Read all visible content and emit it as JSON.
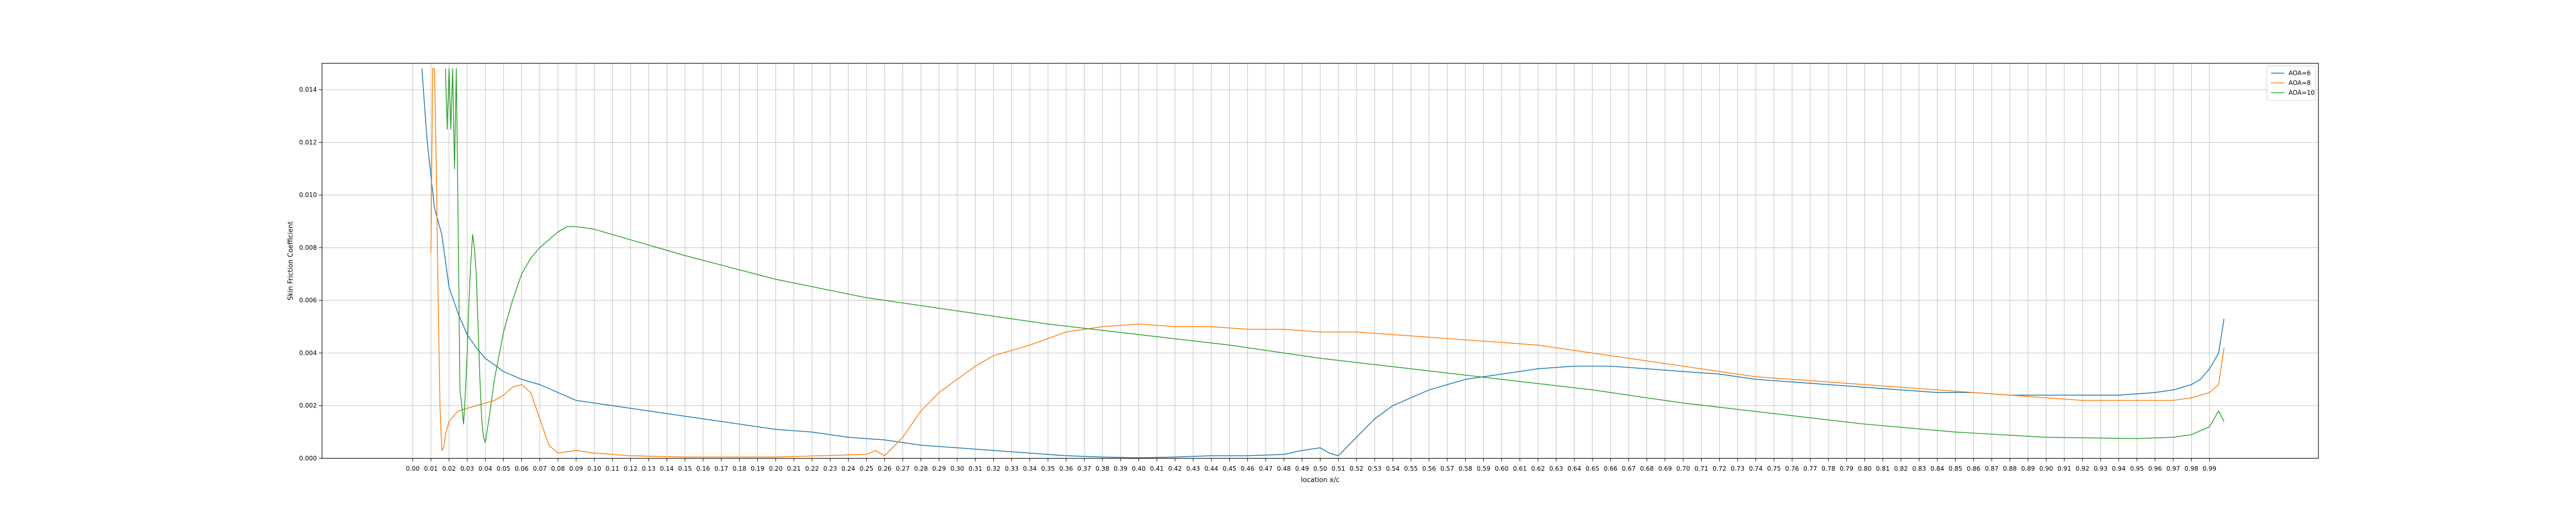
{
  "chart_data": {
    "type": "line",
    "title": "",
    "xlabel": "location x/c",
    "ylabel": "Skin Friction Coefficient",
    "xlim": [
      -0.05,
      1.05
    ],
    "ylim": [
      0,
      0.015
    ],
    "grid": true,
    "legend_position": "top-right",
    "xticks": [
      "0.00",
      "0.01",
      "0.02",
      "0.03",
      "0.04",
      "0.05",
      "0.06",
      "0.07",
      "0.08",
      "0.09",
      "0.10",
      "0.11",
      "0.12",
      "0.13",
      "0.14",
      "0.15",
      "0.16",
      "0.17",
      "0.18",
      "0.19",
      "0.20",
      "0.21",
      "0.22",
      "0.23",
      "0.24",
      "0.25",
      "0.26",
      "0.27",
      "0.28",
      "0.29",
      "0.30",
      "0.31",
      "0.32",
      "0.33",
      "0.34",
      "0.35",
      "0.36",
      "0.37",
      "0.38",
      "0.39",
      "0.40",
      "0.41",
      "0.42",
      "0.43",
      "0.44",
      "0.45",
      "0.46",
      "0.47",
      "0.48",
      "0.49",
      "0.50",
      "0.51",
      "0.52",
      "0.53",
      "0.54",
      "0.55",
      "0.56",
      "0.57",
      "0.58",
      "0.59",
      "0.60",
      "0.61",
      "0.62",
      "0.63",
      "0.64",
      "0.65",
      "0.66",
      "0.67",
      "0.68",
      "0.69",
      "0.70",
      "0.71",
      "0.72",
      "0.73",
      "0.74",
      "0.75",
      "0.76",
      "0.77",
      "0.78",
      "0.79",
      "0.80",
      "0.81",
      "0.82",
      "0.83",
      "0.84",
      "0.85",
      "0.86",
      "0.87",
      "0.88",
      "0.89",
      "0.90",
      "0.91",
      "0.92",
      "0.93",
      "0.94",
      "0.95",
      "0.96",
      "0.97",
      "0.98",
      "0.99"
    ],
    "yticks": [
      "0.000",
      "0.002",
      "0.004",
      "0.006",
      "0.008",
      "0.010",
      "0.012",
      "0.014"
    ],
    "series": [
      {
        "name": "AOA=6",
        "color": "#1f77b4",
        "x": [
          0.005,
          0.008,
          0.012,
          0.016,
          0.02,
          0.025,
          0.03,
          0.035,
          0.04,
          0.05,
          0.06,
          0.07,
          0.08,
          0.09,
          0.1,
          0.12,
          0.14,
          0.16,
          0.18,
          0.2,
          0.22,
          0.24,
          0.26,
          0.28,
          0.3,
          0.32,
          0.34,
          0.36,
          0.38,
          0.4,
          0.42,
          0.44,
          0.46,
          0.48,
          0.49,
          0.5,
          0.505,
          0.51,
          0.52,
          0.53,
          0.54,
          0.55,
          0.56,
          0.58,
          0.6,
          0.62,
          0.64,
          0.66,
          0.68,
          0.7,
          0.72,
          0.74,
          0.76,
          0.78,
          0.8,
          0.82,
          0.84,
          0.86,
          0.88,
          0.9,
          0.92,
          0.94,
          0.96,
          0.97,
          0.98,
          0.985,
          0.99,
          0.995,
          0.998
        ],
        "y": [
          0.0148,
          0.012,
          0.0095,
          0.0085,
          0.0065,
          0.0055,
          0.0047,
          0.0042,
          0.0038,
          0.0033,
          0.003,
          0.0028,
          0.0025,
          0.0022,
          0.0021,
          0.0019,
          0.0017,
          0.0015,
          0.0013,
          0.0011,
          0.001,
          0.0008,
          0.0007,
          0.0005,
          0.0004,
          0.0003,
          0.0002,
          0.0001,
          5e-05,
          2e-05,
          5e-05,
          0.0001,
          0.0001,
          0.00015,
          0.0003,
          0.0004,
          0.0002,
          0.0001,
          0.0008,
          0.0015,
          0.002,
          0.0023,
          0.0026,
          0.003,
          0.0032,
          0.0034,
          0.0035,
          0.0035,
          0.0034,
          0.0033,
          0.0032,
          0.003,
          0.0029,
          0.0028,
          0.0027,
          0.0026,
          0.0025,
          0.0025,
          0.0024,
          0.0024,
          0.0024,
          0.0024,
          0.0025,
          0.0026,
          0.0028,
          0.003,
          0.0034,
          0.004,
          0.0053
        ]
      },
      {
        "name": "AOA=8",
        "color": "#ff7f0e",
        "x": [
          0.01,
          0.011,
          0.012,
          0.013,
          0.014,
          0.015,
          0.016,
          0.017,
          0.018,
          0.02,
          0.025,
          0.03,
          0.035,
          0.04,
          0.045,
          0.05,
          0.055,
          0.06,
          0.065,
          0.07,
          0.075,
          0.08,
          0.09,
          0.1,
          0.12,
          0.15,
          0.2,
          0.25,
          0.255,
          0.26,
          0.27,
          0.28,
          0.29,
          0.3,
          0.31,
          0.32,
          0.34,
          0.36,
          0.38,
          0.4,
          0.42,
          0.44,
          0.46,
          0.48,
          0.5,
          0.52,
          0.54,
          0.56,
          0.58,
          0.6,
          0.62,
          0.64,
          0.66,
          0.68,
          0.7,
          0.72,
          0.74,
          0.76,
          0.78,
          0.8,
          0.82,
          0.84,
          0.86,
          0.88,
          0.9,
          0.92,
          0.94,
          0.96,
          0.97,
          0.98,
          0.99,
          0.995,
          0.998
        ],
        "y": [
          0.0078,
          0.0148,
          0.0148,
          0.011,
          0.006,
          0.002,
          0.0003,
          0.0004,
          0.0009,
          0.0014,
          0.0018,
          0.0019,
          0.002,
          0.0021,
          0.0022,
          0.0024,
          0.0027,
          0.0028,
          0.0025,
          0.0015,
          0.0005,
          0.0002,
          0.0003,
          0.0002,
          0.0001,
          5e-05,
          5e-05,
          0.00015,
          0.0003,
          0.0001,
          0.0008,
          0.0018,
          0.0025,
          0.003,
          0.0035,
          0.0039,
          0.0043,
          0.0048,
          0.005,
          0.0051,
          0.005,
          0.005,
          0.0049,
          0.0049,
          0.0048,
          0.0048,
          0.0047,
          0.0046,
          0.0045,
          0.0044,
          0.0043,
          0.0041,
          0.0039,
          0.0037,
          0.0035,
          0.0033,
          0.0031,
          0.003,
          0.0029,
          0.0028,
          0.0027,
          0.0026,
          0.0025,
          0.0024,
          0.0023,
          0.0022,
          0.0022,
          0.0022,
          0.0022,
          0.0023,
          0.0025,
          0.0028,
          0.0042
        ]
      },
      {
        "name": "AOA=10",
        "color": "#2ca02c",
        "x": [
          0.018,
          0.019,
          0.02,
          0.021,
          0.022,
          0.023,
          0.024,
          0.025,
          0.026,
          0.027,
          0.028,
          0.029,
          0.03,
          0.031,
          0.032,
          0.033,
          0.034,
          0.035,
          0.036,
          0.037,
          0.038,
          0.039,
          0.04,
          0.042,
          0.045,
          0.05,
          0.055,
          0.06,
          0.065,
          0.07,
          0.075,
          0.08,
          0.085,
          0.09,
          0.1,
          0.12,
          0.15,
          0.2,
          0.25,
          0.3,
          0.35,
          0.4,
          0.45,
          0.5,
          0.55,
          0.6,
          0.65,
          0.7,
          0.75,
          0.8,
          0.85,
          0.9,
          0.95,
          0.97,
          0.98,
          0.99,
          0.995,
          0.998
        ],
        "y": [
          0.0148,
          0.0125,
          0.0148,
          0.0125,
          0.0148,
          0.011,
          0.0148,
          0.009,
          0.0026,
          0.002,
          0.0013,
          0.0025,
          0.004,
          0.006,
          0.0075,
          0.0085,
          0.008,
          0.007,
          0.005,
          0.003,
          0.0015,
          0.0008,
          0.0006,
          0.0015,
          0.003,
          0.0048,
          0.006,
          0.007,
          0.0076,
          0.008,
          0.0083,
          0.0086,
          0.0088,
          0.0088,
          0.0087,
          0.0083,
          0.0077,
          0.0068,
          0.0061,
          0.0056,
          0.0051,
          0.0047,
          0.0043,
          0.0038,
          0.0034,
          0.003,
          0.0026,
          0.0021,
          0.0017,
          0.0013,
          0.001,
          0.0008,
          0.00075,
          0.0008,
          0.0009,
          0.0012,
          0.0018,
          0.0014
        ]
      }
    ]
  }
}
